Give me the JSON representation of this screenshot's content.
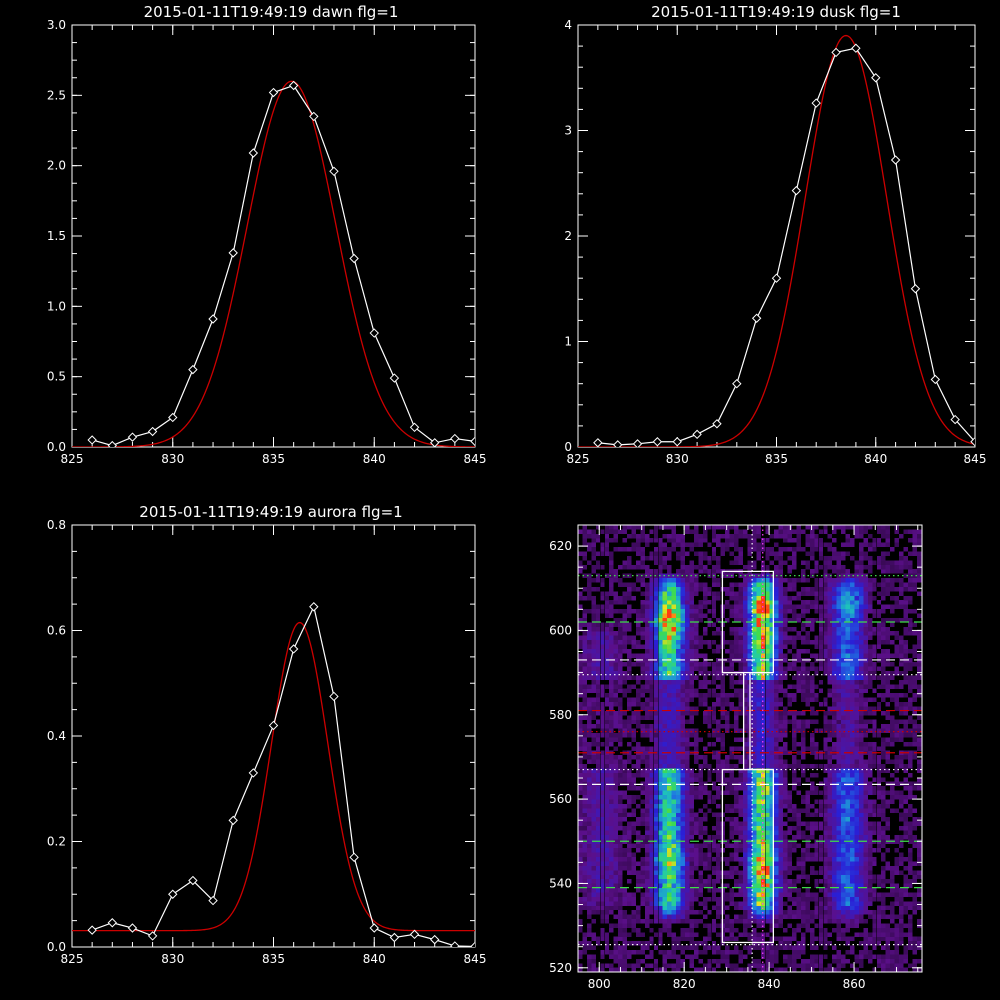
{
  "chart_data": [
    {
      "type": "line",
      "title": "2015-01-11T19:49:19 dawn flg=1",
      "xlim": [
        825,
        845
      ],
      "ylim": [
        0,
        3
      ],
      "xticks": [
        "825",
        "830",
        "835",
        "840",
        "845"
      ],
      "yticks": [
        "0.0",
        "0.5",
        "1.0",
        "1.5",
        "2.0",
        "2.5",
        "3.0"
      ],
      "series": [
        {
          "color": "#ffffff",
          "markers": "diamond",
          "x": [
            826,
            827,
            828,
            829,
            830,
            831,
            832,
            833,
            834,
            835,
            836,
            837,
            838,
            839,
            840,
            841,
            842,
            843,
            844,
            845
          ],
          "y": [
            0.05,
            0.01,
            0.07,
            0.11,
            0.21,
            0.55,
            0.91,
            1.38,
            2.09,
            2.52,
            2.57,
            2.35,
            1.96,
            1.34,
            0.81,
            0.49,
            0.14,
            0.03,
            0.06,
            0.04
          ]
        },
        {
          "color": "#cc0000",
          "model": "gaussian",
          "params": {
            "amp": 2.6,
            "center": 835.9,
            "sigma": 2.2,
            "offset": 0.0
          }
        }
      ]
    },
    {
      "type": "line",
      "title": "2015-01-11T19:49:19 dusk flg=1",
      "xlim": [
        825,
        845
      ],
      "ylim": [
        0,
        4
      ],
      "xticks": [
        "825",
        "830",
        "835",
        "840",
        "845"
      ],
      "yticks": [
        "0",
        "1",
        "2",
        "3",
        "4"
      ],
      "series": [
        {
          "color": "#ffffff",
          "markers": "diamond",
          "x": [
            826,
            827,
            828,
            829,
            830,
            831,
            832,
            833,
            834,
            835,
            836,
            837,
            838,
            839,
            840,
            841,
            842,
            843,
            844,
            845
          ],
          "y": [
            0.04,
            0.02,
            0.03,
            0.05,
            0.05,
            0.12,
            0.22,
            0.6,
            1.22,
            1.6,
            2.43,
            3.26,
            3.74,
            3.78,
            3.5,
            2.72,
            1.5,
            0.64,
            0.26,
            0.05
          ]
        },
        {
          "color": "#cc0000",
          "model": "gaussian",
          "params": {
            "amp": 3.9,
            "center": 838.5,
            "sigma": 2.05,
            "offset": 0.0
          }
        }
      ]
    },
    {
      "type": "line",
      "title": "2015-01-11T19:49:19 aurora flg=1",
      "xlim": [
        825,
        845
      ],
      "ylim": [
        0,
        0.8
      ],
      "xticks": [
        "825",
        "830",
        "835",
        "840",
        "845"
      ],
      "yticks": [
        "0.0",
        "0.2",
        "0.4",
        "0.6",
        "0.8"
      ],
      "series": [
        {
          "color": "#ffffff",
          "markers": "diamond",
          "x": [
            826,
            827,
            828,
            829,
            830,
            831,
            832,
            833,
            834,
            835,
            836,
            837,
            838,
            839,
            840,
            841,
            842,
            843,
            844,
            845
          ],
          "y": [
            0.032,
            0.046,
            0.036,
            0.021,
            0.1,
            0.126,
            0.088,
            0.24,
            0.33,
            0.42,
            0.565,
            0.645,
            0.475,
            0.17,
            0.036,
            0.018,
            0.024,
            0.014,
            0.002,
            0.001
          ]
        },
        {
          "color": "#cc0000",
          "model": "gaussian",
          "params": {
            "amp": 0.584,
            "center": 836.3,
            "sigma": 1.4,
            "offset": 0.031
          }
        }
      ]
    },
    {
      "type": "heatmap",
      "xlim": [
        795,
        876
      ],
      "ylim": [
        519,
        625
      ],
      "xticks": [
        "800",
        "820",
        "840",
        "860"
      ],
      "yticks": [
        "520",
        "540",
        "560",
        "580",
        "600",
        "620"
      ],
      "colormap": [
        "#000000",
        "#5b0f8a",
        "#2a1fd6",
        "#1f7be0",
        "#1ec8b8",
        "#3fdc4a",
        "#f2e21a",
        "#ff3a10"
      ],
      "boxes": [
        {
          "x": [
            829,
            841
          ],
          "y": [
            590,
            614
          ]
        },
        {
          "x": [
            829,
            841
          ],
          "y": [
            526,
            567
          ]
        }
      ],
      "hlines": [
        {
          "y": 613,
          "color": "#3fdc4a",
          "style": "dotted"
        },
        {
          "y": 602,
          "color": "#3fdc4a",
          "style": "dashed"
        },
        {
          "y": 593,
          "color": "#ffffff",
          "style": "dashed"
        },
        {
          "y": 589.5,
          "color": "#ffffff",
          "style": "dotted"
        },
        {
          "y": 581,
          "color": "#cc0000",
          "style": "dashed"
        },
        {
          "y": 576,
          "color": "#cc0000",
          "style": "dotted"
        },
        {
          "y": 571,
          "color": "#cc0000",
          "style": "dashed"
        },
        {
          "y": 567,
          "color": "#ffffff",
          "style": "dotted"
        },
        {
          "y": 563.5,
          "color": "#ffffff",
          "style": "dashed"
        },
        {
          "y": 550,
          "color": "#3fdc4a",
          "style": "dashed"
        },
        {
          "y": 539,
          "color": "#3fdc4a",
          "style": "dashed"
        },
        {
          "y": 525.5,
          "color": "#ffffff",
          "style": "dotted"
        }
      ],
      "vlines": [
        {
          "x": 836,
          "color": "#ffffff",
          "style": "dotted"
        },
        {
          "x": 838.5,
          "color": "#ff40ff",
          "style": "dotted"
        }
      ],
      "bands": [
        {
          "x": 816,
          "width": 2.2,
          "y": [
            533,
            612
          ],
          "peak": 0.62,
          "clumps": [
            [
              603,
              0.3
            ],
            [
              600,
              0.25
            ],
            [
              545,
              0.2
            ]
          ]
        },
        {
          "x": 838,
          "width": 2.0,
          "y": [
            533,
            612
          ],
          "peak": 0.78,
          "clumps": [
            [
              605,
              0.35
            ],
            [
              598,
              0.3
            ],
            [
              545,
              0.25
            ],
            [
              541,
              0.2
            ]
          ]
        },
        {
          "x": 858,
          "width": 2.4,
          "y": [
            533,
            612
          ],
          "peak": 0.33,
          "clumps": [
            [
              606,
              0.18
            ]
          ]
        },
        {
          "x": 800,
          "width": 3.0,
          "y": [
            535,
            600
          ],
          "peak": 0.1,
          "clumps": []
        }
      ]
    }
  ]
}
